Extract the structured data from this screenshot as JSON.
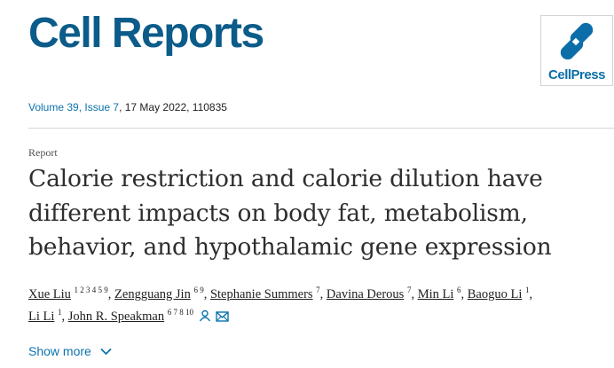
{
  "journal": {
    "title": "Cell Reports",
    "logo_text": "CellPress",
    "brand_color": "#0c5c8a"
  },
  "citation": {
    "volume_issue": "Volume 39, Issue 7",
    "date_id": ", 17 May 2022, 110835"
  },
  "article": {
    "type": "Report",
    "title_lines": [
      "Calorie restriction and calorie dilution have",
      "different impacts on body fat, metabolism,",
      "behavior, and hypothalamic gene expression"
    ]
  },
  "authors": [
    {
      "name": "Xue Liu",
      "sup": "1 2 3 4 5 9",
      "sep": ", "
    },
    {
      "name": "Zengguang Jin",
      "sup": "6 9",
      "sep": ", "
    },
    {
      "name": "Stephanie Summers",
      "sup": "7",
      "sep": ", "
    },
    {
      "name": "Davina Derous",
      "sup": "7",
      "sep": ", "
    },
    {
      "name": "Min Li",
      "sup": "6",
      "sep": ", "
    },
    {
      "name": "Baoguo Li",
      "sup": "1",
      "sep": ","
    },
    {
      "name": "Li Li",
      "sup": "1",
      "sep": ", "
    },
    {
      "name": "John R. Speakman",
      "sup": "6 7 8 10",
      "sep": ""
    }
  ],
  "icons": {
    "person": "person-icon",
    "mail": "mail-icon",
    "chevron": "chevron-down-icon"
  },
  "show_more": {
    "label": "Show more"
  },
  "colors": {
    "link": "#0c72ad",
    "divider": "#d6d6d6",
    "text": "#1f1f1f"
  }
}
